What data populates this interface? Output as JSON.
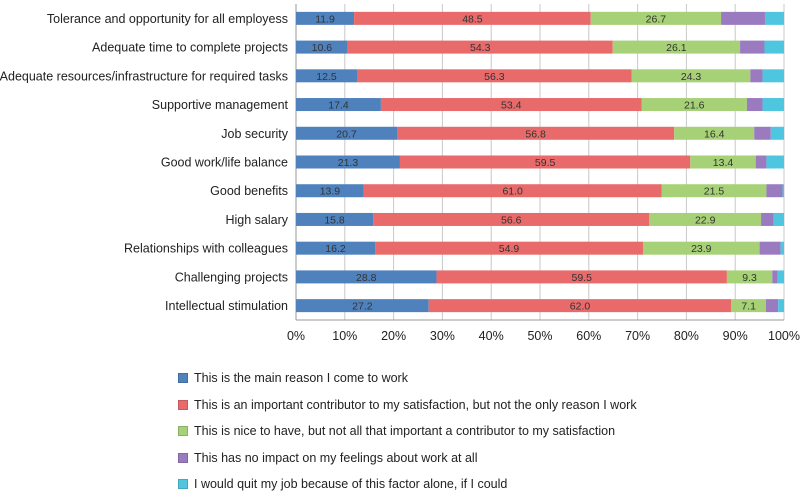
{
  "chart_data": {
    "type": "bar",
    "orientation": "horizontal",
    "stacked": "percent",
    "categories": [
      "Tolerance and opportunity for all employess",
      "Adequate time to complete projects",
      "Adequate resources/infrastructure for required tasks",
      "Supportive management",
      "Job security",
      "Good work/life balance",
      "Good benefits",
      "High salary",
      "Relationships with colleagues",
      "Challenging projects",
      "Intellectual stimulation"
    ],
    "series": [
      {
        "name": "This is the main reason I come to work",
        "color": "#4f81bd",
        "values": [
          11.9,
          10.6,
          12.5,
          17.4,
          20.7,
          21.3,
          13.9,
          15.8,
          16.2,
          28.8,
          27.2
        ]
      },
      {
        "name": "This is an important contributor to my satisfaction, but not the only reason I work",
        "color": "#e86a6a",
        "values": [
          48.5,
          54.3,
          56.3,
          53.4,
          56.8,
          59.5,
          61.0,
          56.6,
          54.9,
          59.5,
          62.0
        ]
      },
      {
        "name": "This is nice to have, but not all that important a contributor to my satisfaction",
        "color": "#a6d176",
        "values": [
          26.7,
          26.1,
          24.3,
          21.6,
          16.4,
          13.4,
          21.5,
          22.9,
          23.9,
          9.3,
          7.1
        ]
      },
      {
        "name": "This has no impact on my feelings about work at all",
        "color": "#9b7bc0",
        "values": [
          9.0,
          5.0,
          2.5,
          3.2,
          3.4,
          2.2,
          3.3,
          2.6,
          4.3,
          1.1,
          2.5
        ]
      },
      {
        "name": "I would quit my job because of this factor alone, if I could",
        "color": "#4fc6e0",
        "values": [
          3.9,
          4.0,
          4.4,
          4.4,
          2.7,
          3.6,
          0.3,
          2.1,
          0.7,
          1.3,
          1.2
        ]
      }
    ],
    "data_labels_series": [
      0,
      1,
      2
    ],
    "xlim": [
      0,
      100
    ],
    "xticks": [
      "0%",
      "10%",
      "20%",
      "30%",
      "40%",
      "50%",
      "60%",
      "70%",
      "80%",
      "90%",
      "100%"
    ],
    "grid": true,
    "legend_position": "bottom"
  }
}
